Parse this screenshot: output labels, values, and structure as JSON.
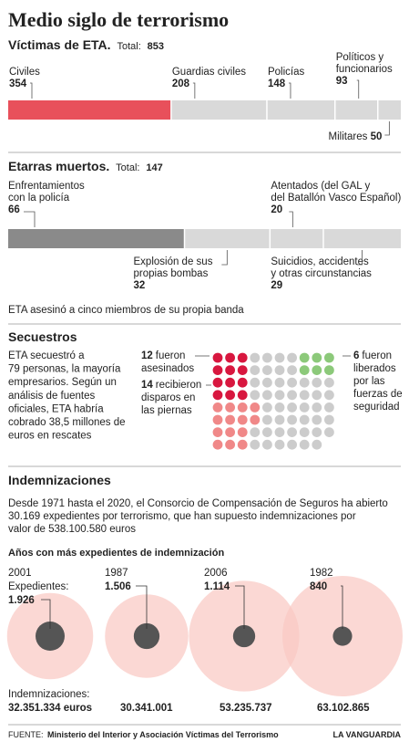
{
  "title": "Medio siglo de terrorismo",
  "chart_data": [
    {
      "type": "bar",
      "title": "Víctimas de ETA.",
      "total_label": "Total:",
      "total": 853,
      "categories": [
        "Civiles",
        "Guardias civiles",
        "Policías",
        "Políticos y funcionarios",
        "Militares"
      ],
      "values": [
        354,
        208,
        148,
        93,
        50
      ],
      "colors": [
        "#e8505b",
        "#d9d9d9",
        "#d9d9d9",
        "#d9d9d9",
        "#d9d9d9"
      ]
    },
    {
      "type": "bar",
      "title": "Etarras muertos.",
      "total_label": "Total:",
      "total": 147,
      "categories": [
        "Enfrentamientos con la policía",
        "Explosión de sus propias bombas",
        "Atentados (del GAL y del Batallón Vasco Español)",
        "Suicidios, accidentes y otras circunstancias"
      ],
      "values": [
        66,
        32,
        20,
        29
      ],
      "colors": [
        "#8a8a8a",
        "#d9d9d9",
        "#d9d9d9",
        "#d9d9d9"
      ],
      "note": "ETA asesinó a cinco miembros de su propia banda"
    },
    {
      "type": "pictogram",
      "title": "Secuestros",
      "description": "ETA secuestró a 79 personas, la mayoría empresarios. Según un análisis de fuentes oficiales, ETA habría cobrado 38,5 millones de euros en rescates",
      "total": 79,
      "groups": [
        {
          "label": "fueron asesinados",
          "value": 12,
          "color": "#d8173f"
        },
        {
          "label": "recibieron disparos en las piernas",
          "value": 14,
          "color": "#f08888"
        },
        {
          "label": "fueron liberados por las fuerzas de seguridad",
          "value": 6,
          "color": "#8cc97a"
        }
      ],
      "rest_color": "#cccccc"
    },
    {
      "type": "bubble",
      "title": "Indemnizaciones",
      "intro": "Desde 1971 hasta el 2020, el Consorcio de Compensación de Seguros ha abierto 30.169 expedientes por terrorismo, que han supuesto indemnizaciones por valor de 538.100.580 euros",
      "subtitle": "Años con más expedientes de indemnización",
      "expedientes_label": "Expedientes:",
      "indemnizaciones_label": "Indemnizaciones:",
      "points": [
        {
          "year": "2001",
          "expedientes": "1.926",
          "indemnizaciones": "32.351.334 euros"
        },
        {
          "year": "1987",
          "expedientes": "1.506",
          "indemnizaciones": "30.341.001"
        },
        {
          "year": "2006",
          "expedientes": "1.114",
          "indemnizaciones": "53.235.737"
        },
        {
          "year": "1982",
          "expedientes": "840",
          "indemnizaciones": "63.102.865"
        }
      ],
      "expedientes_color": "#555555",
      "indemnizaciones_color": "#f9c9c4"
    }
  ],
  "footer": {
    "source_label": "FUENTE:",
    "source": "Ministerio del Interior y Asociación Víctimas del Terrorismo",
    "brand": "LA VANGUARDIA"
  }
}
